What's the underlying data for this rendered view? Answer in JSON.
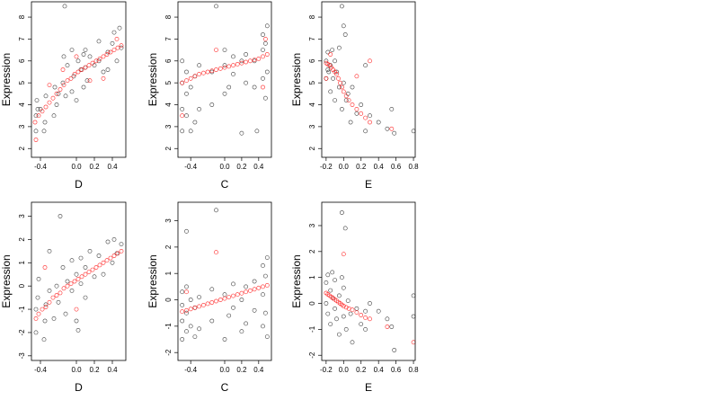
{
  "figure": {
    "layout": "2 rows x 3 columns scatter panels",
    "colors": {
      "observed": "#000000",
      "fitted": "#ff0000",
      "frame": "#000000",
      "background": "#ffffff"
    }
  },
  "chart_data": [
    {
      "type": "scatter",
      "xlabel": "D",
      "ylabel": "Expression",
      "xlim": [
        -0.5,
        0.55
      ],
      "ylim": [
        1.6,
        8.7
      ],
      "xticks": [
        -0.4,
        0.0,
        0.2,
        0.4
      ],
      "xtick_labels": [
        "-0.4",
        "0.0",
        "0.2",
        "0.4"
      ],
      "yticks": [
        2,
        3,
        4,
        5,
        6,
        7,
        8
      ],
      "ytick_labels": [
        "2",
        "3",
        "4",
        "5",
        "6",
        "7",
        "8"
      ],
      "series": [
        {
          "role": "observed",
          "marker": "open-circle",
          "color": "#000000",
          "x": [
            -0.45,
            -0.45,
            -0.44,
            -0.43,
            -0.36,
            -0.35,
            -0.34,
            -0.25,
            -0.24,
            -0.22,
            -0.15,
            -0.14,
            -0.12,
            -0.1,
            -0.05,
            -0.05,
            -0.03,
            0.0,
            0.02,
            0.05,
            0.08,
            0.08,
            0.1,
            0.1,
            0.12,
            0.15,
            0.2,
            0.25,
            0.3,
            0.35,
            0.4,
            0.42,
            0.45,
            0.48,
            0.5,
            -0.4,
            -0.2,
            -0.13,
            0.25,
            0.35
          ],
          "y": [
            2.8,
            3.5,
            4.2,
            3.8,
            2.8,
            3.2,
            4.4,
            3.5,
            4.8,
            4.0,
            5.0,
            6.2,
            4.4,
            5.8,
            4.6,
            6.5,
            5.3,
            4.2,
            6.0,
            5.6,
            6.3,
            4.8,
            5.7,
            6.5,
            5.1,
            6.2,
            5.8,
            6.0,
            5.5,
            6.4,
            6.8,
            7.3,
            6.0,
            7.5,
            6.6,
            3.8,
            4.5,
            8.5,
            6.9,
            5.6
          ]
        },
        {
          "role": "fitted",
          "marker": "open-circle",
          "color": "#ff0000",
          "x": [
            -0.46,
            -0.42,
            -0.38,
            -0.34,
            -0.3,
            -0.26,
            -0.22,
            -0.18,
            -0.14,
            -0.1,
            -0.06,
            -0.02,
            0.02,
            0.06,
            0.1,
            0.14,
            0.18,
            0.22,
            0.26,
            0.3,
            0.34,
            0.38,
            0.42,
            0.46,
            0.5,
            -0.45,
            -0.3,
            -0.15,
            0.0,
            0.15,
            0.3,
            0.45
          ],
          "y": [
            3.2,
            3.5,
            3.7,
            3.9,
            4.1,
            4.3,
            4.5,
            4.7,
            4.9,
            5.1,
            5.2,
            5.4,
            5.5,
            5.6,
            5.7,
            5.8,
            5.9,
            6.0,
            6.1,
            6.2,
            6.3,
            6.4,
            6.5,
            6.6,
            6.7,
            2.4,
            4.9,
            5.6,
            6.2,
            5.1,
            5.2,
            7.0
          ]
        }
      ]
    },
    {
      "type": "scatter",
      "xlabel": "C",
      "ylabel": "Expression",
      "xlim": [
        -0.55,
        0.55
      ],
      "ylim": [
        1.6,
        8.7
      ],
      "xticks": [
        -0.4,
        0.0,
        0.2,
        0.4
      ],
      "xtick_labels": [
        "-0.4",
        "0.0",
        "0.2",
        "0.4"
      ],
      "yticks": [
        2,
        3,
        4,
        5,
        6,
        7,
        8
      ],
      "ytick_labels": [
        "2",
        "3",
        "4",
        "5",
        "6",
        "7",
        "8"
      ],
      "series": [
        {
          "role": "observed",
          "marker": "open-circle",
          "color": "#000000",
          "x": [
            -0.5,
            -0.5,
            -0.5,
            -0.5,
            -0.45,
            -0.45,
            -0.45,
            -0.4,
            -0.4,
            -0.35,
            -0.35,
            -0.3,
            -0.3,
            -0.15,
            -0.15,
            0.0,
            0.0,
            0.0,
            0.05,
            0.1,
            0.1,
            0.2,
            0.2,
            0.25,
            0.25,
            0.35,
            0.35,
            0.38,
            0.45,
            0.45,
            0.45,
            0.48,
            0.48,
            0.5,
            0.5,
            -0.1
          ],
          "y": [
            2.8,
            3.8,
            5.0,
            6.0,
            3.5,
            4.5,
            5.5,
            2.8,
            4.8,
            3.2,
            5.3,
            3.8,
            5.8,
            4.0,
            5.5,
            4.5,
            5.8,
            6.5,
            4.8,
            5.4,
            6.2,
            2.7,
            6.0,
            5.0,
            6.3,
            4.8,
            6.0,
            2.8,
            5.2,
            6.5,
            7.2,
            4.3,
            6.8,
            5.5,
            7.6,
            8.5
          ]
        },
        {
          "role": "fitted",
          "marker": "open-circle",
          "color": "#ff0000",
          "x": [
            -0.5,
            -0.45,
            -0.4,
            -0.35,
            -0.3,
            -0.25,
            -0.2,
            -0.15,
            -0.1,
            -0.05,
            0.0,
            0.05,
            0.1,
            0.15,
            0.2,
            0.25,
            0.3,
            0.35,
            0.4,
            0.45,
            0.5,
            -0.5,
            -0.1,
            0.45,
            0.48
          ],
          "y": [
            5.0,
            5.1,
            5.2,
            5.3,
            5.4,
            5.45,
            5.5,
            5.55,
            5.6,
            5.65,
            5.7,
            5.75,
            5.8,
            5.85,
            5.9,
            5.95,
            6.0,
            6.05,
            6.1,
            6.2,
            6.3,
            3.5,
            6.5,
            4.8,
            7.0
          ]
        }
      ]
    },
    {
      "type": "scatter",
      "xlabel": "E",
      "ylabel": "Expression",
      "xlim": [
        -0.25,
        0.82
      ],
      "ylim": [
        1.6,
        8.7
      ],
      "xticks": [
        -0.2,
        0.0,
        0.2,
        0.4,
        0.6,
        0.8
      ],
      "xtick_labels": [
        "-0.2",
        "0.0",
        "0.2",
        "0.4",
        "0.6",
        "0.8"
      ],
      "yticks": [
        2,
        3,
        4,
        5,
        6,
        7,
        8
      ],
      "ytick_labels": [
        "2",
        "3",
        "4",
        "5",
        "6",
        "7",
        "8"
      ],
      "series": [
        {
          "role": "observed",
          "marker": "open-circle",
          "color": "#000000",
          "x": [
            -0.2,
            -0.2,
            -0.18,
            -0.18,
            -0.15,
            -0.15,
            -0.13,
            -0.12,
            -0.1,
            -0.1,
            -0.08,
            -0.05,
            -0.05,
            -0.02,
            0.0,
            0.0,
            0.03,
            0.05,
            0.08,
            0.1,
            0.15,
            0.2,
            0.25,
            0.25,
            0.3,
            0.4,
            0.5,
            0.55,
            0.58,
            0.8,
            -0.02,
            -0.17,
            0.02
          ],
          "y": [
            5.2,
            6.0,
            5.6,
            6.4,
            5.8,
            4.6,
            6.5,
            5.2,
            6.0,
            4.2,
            5.5,
            4.8,
            6.6,
            3.8,
            5.0,
            7.6,
            4.2,
            4.5,
            3.2,
            4.8,
            3.6,
            4.0,
            2.8,
            5.8,
            3.5,
            3.2,
            2.9,
            3.8,
            2.7,
            2.8,
            8.5,
            5.5,
            7.2
          ]
        },
        {
          "role": "fitted",
          "marker": "open-circle",
          "color": "#ff0000",
          "x": [
            -0.2,
            -0.18,
            -0.16,
            -0.14,
            -0.12,
            -0.1,
            -0.08,
            -0.06,
            -0.04,
            -0.02,
            0.0,
            0.03,
            0.06,
            0.1,
            0.15,
            0.2,
            0.25,
            0.3,
            -0.2,
            -0.15,
            0.15,
            0.3,
            0.55
          ],
          "y": [
            5.9,
            5.85,
            5.8,
            5.7,
            5.6,
            5.5,
            5.4,
            5.2,
            5.0,
            4.8,
            4.6,
            4.4,
            4.2,
            4.0,
            3.8,
            3.6,
            3.4,
            3.2,
            5.2,
            6.3,
            5.3,
            6.0,
            2.9
          ]
        }
      ]
    },
    {
      "type": "scatter",
      "xlabel": "D",
      "ylabel": "Expression",
      "xlim": [
        -0.5,
        0.55
      ],
      "ylim": [
        -3.2,
        3.6
      ],
      "xticks": [
        -0.4,
        0.0,
        0.2,
        0.4
      ],
      "xtick_labels": [
        "-0.4",
        "0.0",
        "0.2",
        "0.4"
      ],
      "yticks": [
        -3,
        -2,
        -1,
        0,
        1,
        2,
        3
      ],
      "ytick_labels": [
        "-3",
        "-2",
        "-1",
        "0",
        "1",
        "2",
        "3"
      ],
      "series": [
        {
          "role": "observed",
          "marker": "open-circle",
          "color": "#000000",
          "x": [
            -0.45,
            -0.45,
            -0.43,
            -0.42,
            -0.36,
            -0.35,
            -0.34,
            -0.3,
            -0.25,
            -0.22,
            -0.2,
            -0.15,
            -0.12,
            -0.1,
            -0.05,
            -0.05,
            0.0,
            0.0,
            0.05,
            0.05,
            0.1,
            0.1,
            0.15,
            0.2,
            0.25,
            0.3,
            0.35,
            0.4,
            0.42,
            0.45,
            0.5,
            -0.18,
            -0.3,
            0.02
          ],
          "y": [
            -2.0,
            -1.0,
            -0.5,
            0.3,
            -2.3,
            -1.5,
            -0.8,
            -0.2,
            -1.4,
            0.0,
            -0.7,
            0.8,
            -1.2,
            0.2,
            -0.2,
            1.1,
            -1.5,
            0.5,
            0.1,
            1.2,
            -0.5,
            0.8,
            1.5,
            0.4,
            1.3,
            0.5,
            1.9,
            1.0,
            2.0,
            1.4,
            1.8,
            3.0,
            1.5,
            -1.9
          ]
        },
        {
          "role": "fitted",
          "marker": "open-circle",
          "color": "#ff0000",
          "x": [
            -0.45,
            -0.42,
            -0.38,
            -0.34,
            -0.3,
            -0.26,
            -0.22,
            -0.18,
            -0.14,
            -0.1,
            -0.06,
            -0.02,
            0.02,
            0.06,
            0.1,
            0.14,
            0.18,
            0.22,
            0.26,
            0.3,
            0.34,
            0.38,
            0.42,
            0.46,
            0.5,
            -0.35,
            0.0
          ],
          "y": [
            -1.4,
            -1.2,
            -1.0,
            -0.9,
            -0.7,
            -0.5,
            -0.4,
            -0.3,
            -0.1,
            0.0,
            0.1,
            0.2,
            0.3,
            0.4,
            0.5,
            0.6,
            0.7,
            0.8,
            0.9,
            1.0,
            1.1,
            1.2,
            1.3,
            1.4,
            1.5,
            0.8,
            -1.0
          ]
        }
      ]
    },
    {
      "type": "scatter",
      "xlabel": "C",
      "ylabel": "Expression",
      "xlim": [
        -0.55,
        0.55
      ],
      "ylim": [
        -2.3,
        3.7
      ],
      "xticks": [
        -0.4,
        0.0,
        0.2,
        0.4
      ],
      "xtick_labels": [
        "-0.4",
        "0.0",
        "0.2",
        "0.4"
      ],
      "yticks": [
        -2,
        -1,
        0,
        1,
        2,
        3
      ],
      "ytick_labels": [
        "-2",
        "-1",
        "0",
        "1",
        "2",
        "3"
      ],
      "series": [
        {
          "role": "observed",
          "marker": "open-circle",
          "color": "#000000",
          "x": [
            -0.5,
            -0.5,
            -0.5,
            -0.5,
            -0.45,
            -0.45,
            -0.45,
            -0.4,
            -0.4,
            -0.35,
            -0.35,
            -0.3,
            -0.3,
            -0.15,
            -0.15,
            0.0,
            0.0,
            0.05,
            0.1,
            0.1,
            0.2,
            0.2,
            0.25,
            0.25,
            0.35,
            0.35,
            0.45,
            0.45,
            0.45,
            0.48,
            0.48,
            0.5,
            0.5,
            -0.45,
            -0.1
          ],
          "y": [
            -1.5,
            -0.8,
            -0.2,
            0.3,
            -1.2,
            -0.5,
            0.5,
            -1.0,
            0.0,
            -1.4,
            -0.3,
            -1.1,
            0.1,
            -0.8,
            0.4,
            -1.5,
            0.2,
            -0.6,
            -0.3,
            0.6,
            -1.2,
            0.0,
            0.5,
            -0.9,
            -0.4,
            0.7,
            -1.0,
            0.2,
            1.3,
            -0.5,
            0.9,
            -1.4,
            1.6,
            2.6,
            3.4
          ]
        },
        {
          "role": "fitted",
          "marker": "open-circle",
          "color": "#ff0000",
          "x": [
            -0.5,
            -0.45,
            -0.4,
            -0.35,
            -0.3,
            -0.25,
            -0.2,
            -0.15,
            -0.1,
            -0.05,
            0.0,
            0.05,
            0.1,
            0.15,
            0.2,
            0.25,
            0.3,
            0.35,
            0.4,
            0.45,
            0.5,
            -0.1,
            -0.45
          ],
          "y": [
            -0.45,
            -0.4,
            -0.35,
            -0.3,
            -0.25,
            -0.2,
            -0.15,
            -0.1,
            -0.05,
            0.0,
            0.05,
            0.1,
            0.15,
            0.2,
            0.25,
            0.3,
            0.35,
            0.4,
            0.45,
            0.5,
            0.55,
            1.8,
            0.3
          ]
        }
      ]
    },
    {
      "type": "scatter",
      "xlabel": "E",
      "ylabel": "Expression",
      "xlim": [
        -0.25,
        0.82
      ],
      "ylim": [
        -2.2,
        3.9
      ],
      "xticks": [
        -0.2,
        0.0,
        0.2,
        0.4,
        0.6,
        0.8
      ],
      "xtick_labels": [
        "-0.2",
        "0.0",
        "0.2",
        "0.4",
        "0.6",
        "0.8"
      ],
      "yticks": [
        -2,
        -1,
        0,
        1,
        2,
        3
      ],
      "ytick_labels": [
        "-2",
        "-1",
        "0",
        "1",
        "2",
        "3"
      ],
      "series": [
        {
          "role": "observed",
          "marker": "open-circle",
          "color": "#000000",
          "x": [
            -0.2,
            -0.2,
            -0.18,
            -0.18,
            -0.15,
            -0.15,
            -0.13,
            -0.12,
            -0.1,
            -0.1,
            -0.08,
            -0.05,
            -0.05,
            -0.02,
            0.0,
            0.0,
            0.03,
            0.05,
            0.08,
            0.1,
            0.15,
            0.2,
            0.25,
            0.25,
            0.3,
            0.4,
            0.5,
            0.55,
            0.58,
            0.8,
            0.8,
            -0.02,
            0.02
          ],
          "y": [
            0.0,
            0.8,
            -0.4,
            1.1,
            0.5,
            -0.8,
            1.2,
            0.2,
            -0.2,
            0.9,
            -0.6,
            0.3,
            -1.2,
            1.0,
            -0.5,
            0.6,
            -1.0,
            0.1,
            -0.4,
            -1.5,
            -0.2,
            -0.8,
            -1.0,
            -0.3,
            0.0,
            -0.3,
            -0.6,
            -0.9,
            -1.8,
            0.3,
            -0.5,
            3.5,
            2.9
          ]
        },
        {
          "role": "fitted",
          "marker": "open-circle",
          "color": "#ff0000",
          "x": [
            -0.2,
            -0.18,
            -0.16,
            -0.14,
            -0.12,
            -0.1,
            -0.08,
            -0.06,
            -0.04,
            -0.02,
            0.0,
            0.03,
            0.06,
            0.1,
            0.15,
            0.2,
            0.25,
            0.3,
            0.0,
            0.5,
            0.8
          ],
          "y": [
            0.4,
            0.35,
            0.3,
            0.25,
            0.2,
            0.15,
            0.1,
            0.05,
            0.0,
            -0.05,
            -0.1,
            -0.15,
            -0.2,
            -0.25,
            -0.35,
            -0.45,
            -0.55,
            -0.6,
            1.9,
            -0.9,
            -1.5
          ]
        }
      ]
    }
  ]
}
